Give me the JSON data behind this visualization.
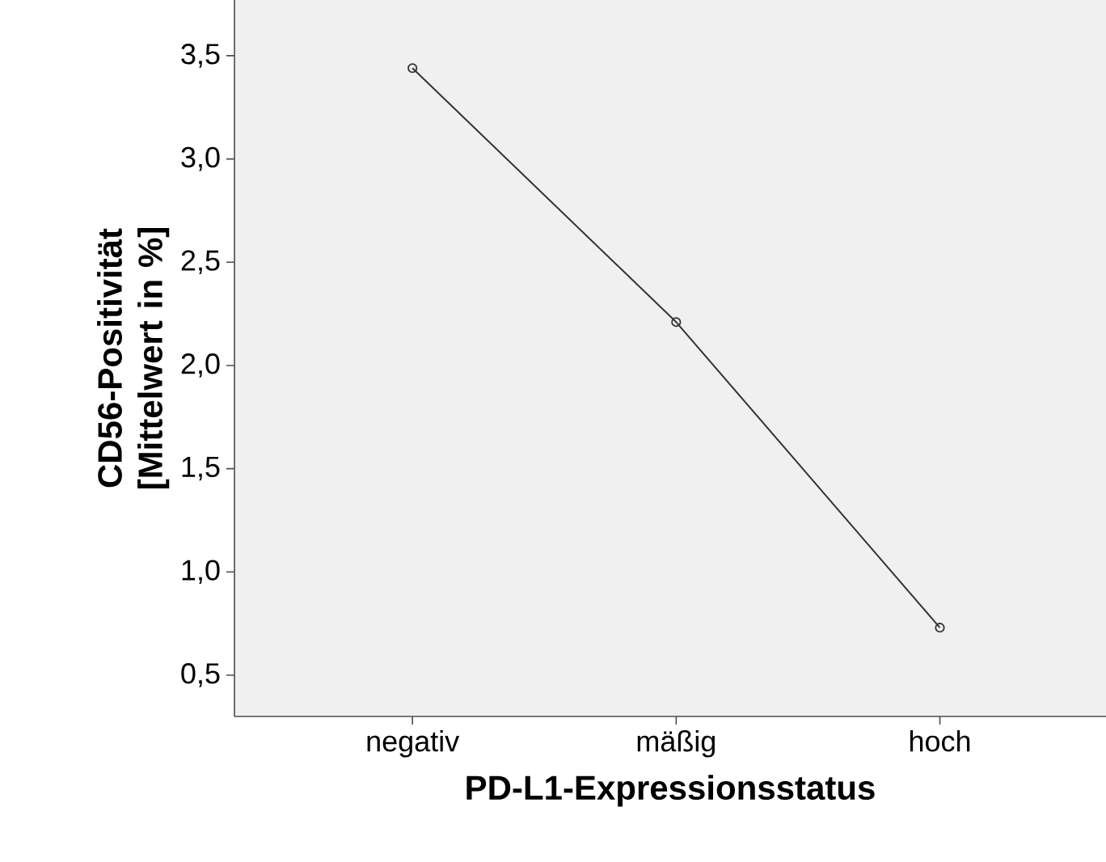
{
  "chart_data": {
    "type": "line",
    "xlabel": "PD-L1-Expressionsstatus",
    "ylabel": "CD56-Positivität [Mittelwert in %]",
    "categories": [
      "negativ",
      "mäßig",
      "hoch"
    ],
    "series": [
      {
        "color": "#333333",
        "values": [
          3.44,
          2.21,
          0.73
        ]
      }
    ],
    "ylim": [
      0.3,
      3.77
    ],
    "yticks": [
      {
        "value": 0.5,
        "label": "0,5"
      },
      {
        "value": 1.0,
        "label": "1,0"
      },
      {
        "value": 1.5,
        "label": "1,5"
      },
      {
        "value": 2.0,
        "label": "2,0"
      },
      {
        "value": 2.5,
        "label": "2,5"
      },
      {
        "value": 3.0,
        "label": "3,0"
      },
      {
        "value": 3.5,
        "label": "3,5"
      }
    ],
    "grid": false,
    "marker": "circle",
    "line_style": "solid"
  }
}
